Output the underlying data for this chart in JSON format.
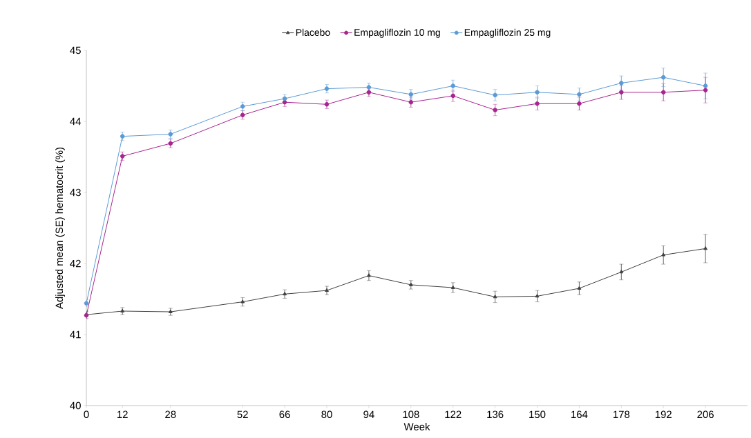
{
  "chart_data": {
    "type": "line",
    "xlabel": "Week",
    "ylabel": "Adjusted mean (SE) hematocrit (%)",
    "x": [
      0,
      12,
      28,
      52,
      66,
      80,
      94,
      108,
      122,
      136,
      150,
      164,
      178,
      192,
      206
    ],
    "xlim": [
      0,
      220
    ],
    "xticks": [
      0,
      12,
      28,
      52,
      66,
      80,
      94,
      108,
      122,
      136,
      150,
      164,
      178,
      192,
      206
    ],
    "ylim": [
      40,
      45
    ],
    "yticks": [
      40,
      41,
      42,
      43,
      44,
      45
    ],
    "grid": false,
    "legend": "top",
    "line_style": "solid",
    "series": [
      {
        "name": "Placebo",
        "color": "#404040",
        "marker": "triangle",
        "values": [
          41.28,
          41.33,
          41.32,
          41.46,
          41.57,
          41.62,
          41.83,
          41.7,
          41.66,
          41.53,
          41.54,
          41.65,
          41.88,
          42.12,
          42.21
        ],
        "errors": [
          0.05,
          0.05,
          0.05,
          0.06,
          0.06,
          0.06,
          0.07,
          0.06,
          0.07,
          0.08,
          0.08,
          0.09,
          0.11,
          0.13,
          0.2
        ]
      },
      {
        "name": "Empagliflozin 10 mg",
        "color": "#a8248f",
        "marker": "circle",
        "values": [
          41.27,
          43.51,
          43.69,
          44.09,
          44.27,
          44.24,
          44.41,
          44.27,
          44.36,
          44.16,
          44.25,
          44.25,
          44.41,
          44.41,
          44.44
        ],
        "errors": [
          0.05,
          0.06,
          0.06,
          0.06,
          0.06,
          0.06,
          0.06,
          0.07,
          0.08,
          0.08,
          0.09,
          0.09,
          0.1,
          0.12,
          0.18
        ]
      },
      {
        "name": "Empagliflozin 25 mg",
        "color": "#5b9bd5",
        "marker": "circle",
        "values": [
          41.44,
          43.79,
          43.82,
          44.21,
          44.32,
          44.46,
          44.48,
          44.38,
          44.5,
          44.37,
          44.41,
          44.38,
          44.54,
          44.62,
          44.5
        ],
        "errors": [
          0.05,
          0.06,
          0.06,
          0.06,
          0.06,
          0.06,
          0.06,
          0.07,
          0.08,
          0.08,
          0.09,
          0.09,
          0.1,
          0.13,
          0.18
        ]
      }
    ]
  }
}
